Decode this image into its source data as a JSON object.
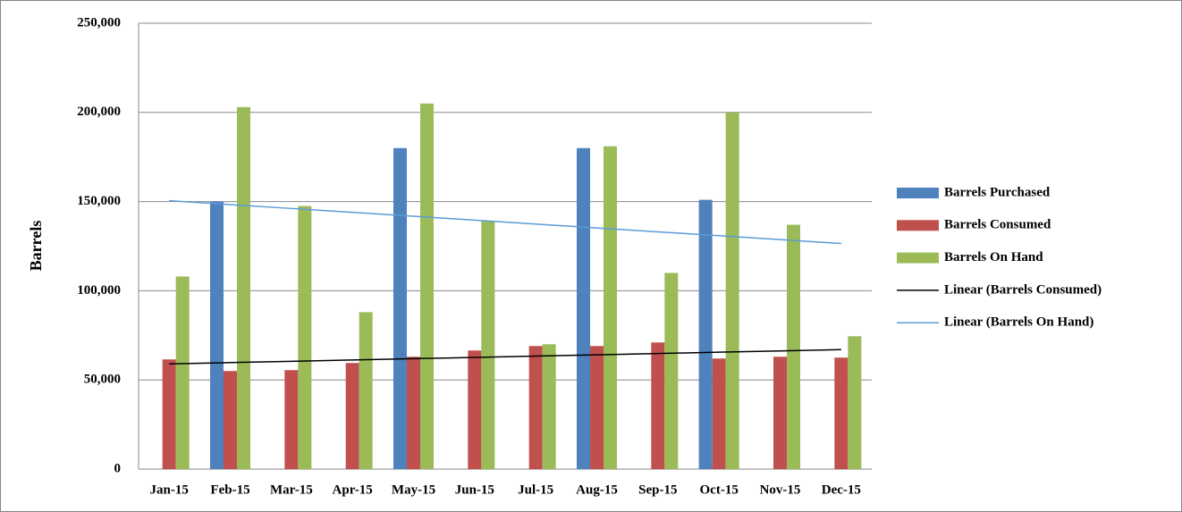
{
  "chart_data": {
    "type": "bar",
    "y_label": "Barrels",
    "categories": [
      "Jan-15",
      "Feb-15",
      "Mar-15",
      "Apr-15",
      "May-15",
      "Jun-15",
      "Jul-15",
      "Aug-15",
      "Sep-15",
      "Oct-15",
      "Nov-15",
      "Dec-15"
    ],
    "series": [
      {
        "name": "Barrels Purchased",
        "color": "#4f81bd",
        "type": "bar",
        "values": [
          null,
          150000,
          null,
          null,
          180000,
          null,
          null,
          180000,
          null,
          151000,
          null,
          null
        ]
      },
      {
        "name": "Barrels Consumed",
        "color": "#c0504d",
        "type": "bar",
        "values": [
          61500,
          55000,
          55500,
          59500,
          63000,
          66500,
          69000,
          69000,
          71000,
          62000,
          63000,
          62500
        ]
      },
      {
        "name": "Barrels On Hand",
        "color": "#9bbb59",
        "type": "bar",
        "values": [
          108000,
          203000,
          147500,
          88000,
          205000,
          139000,
          70000,
          181000,
          110000,
          200000,
          137000,
          74500
        ]
      },
      {
        "name": "Linear (Barrels Consumed)",
        "color": "#000000",
        "type": "line",
        "values": [
          59000,
          59727,
          60455,
          61182,
          61909,
          62636,
          63364,
          64091,
          64818,
          65545,
          66273,
          67000
        ]
      },
      {
        "name": "Linear (Barrels On Hand)",
        "color": "#5b9bd5",
        "type": "line",
        "values": [
          150500,
          148318,
          146136,
          143955,
          141773,
          139591,
          137409,
          135227,
          133045,
          130864,
          128682,
          126500
        ]
      }
    ],
    "ylim": [
      0,
      250000
    ],
    "yticks": [
      0,
      {
        "value": 50000,
        "label": "50,000"
      },
      {
        "value": 100000,
        "label": "100,000"
      },
      {
        "value": 150000,
        "label": "150,000"
      },
      {
        "value": 200000,
        "label": "200,000"
      },
      {
        "value": 250000,
        "label": "250,000"
      }
    ],
    "grid": true,
    "legend": "right"
  }
}
